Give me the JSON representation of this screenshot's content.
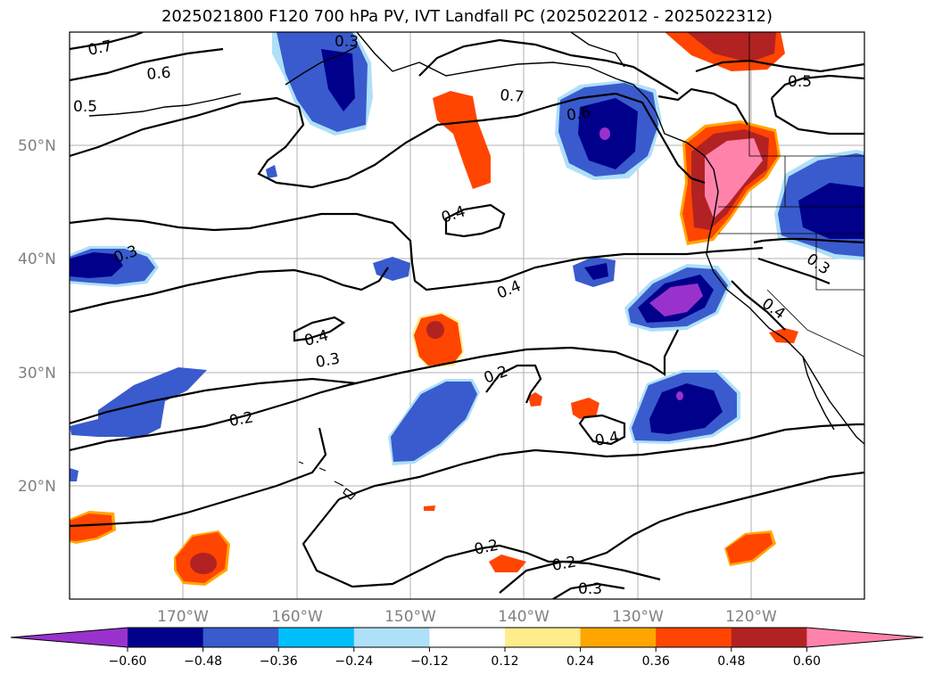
{
  "title": "2025021800 F120 700 hPa PV, IVT Landfall PC (2025022012 - 2025022312)",
  "lat_labels": [
    "50°N",
    "40°N",
    "30°N",
    "20°N"
  ],
  "lon_labels": [
    "170°W",
    "160°W",
    "150°W",
    "140°W",
    "130°W",
    "120°W"
  ],
  "contour_labels": [
    "0.7",
    "0.3",
    "0.6",
    "0.5",
    "0.7",
    "0.6",
    "0.5",
    "0.4",
    "0.3",
    "0.4",
    "0.3",
    "0.4",
    "0.4",
    "0.3",
    "0.2",
    "0.2",
    "0.4",
    "0.2",
    "0.2",
    "0.3"
  ],
  "colorbar": {
    "ticks": [
      "−0.60",
      "−0.48",
      "−0.36",
      "−0.24",
      "−0.12",
      "0.12",
      "0.24",
      "0.36",
      "0.48",
      "0.60"
    ],
    "colors": [
      "#9932cc",
      "#00008b",
      "#3a5bcd",
      "#00bfff",
      "#aee0f8",
      "#ffffff",
      "#ffec8b",
      "#ffa500",
      "#ff4500",
      "#b22222",
      "#ff82ab"
    ]
  }
}
